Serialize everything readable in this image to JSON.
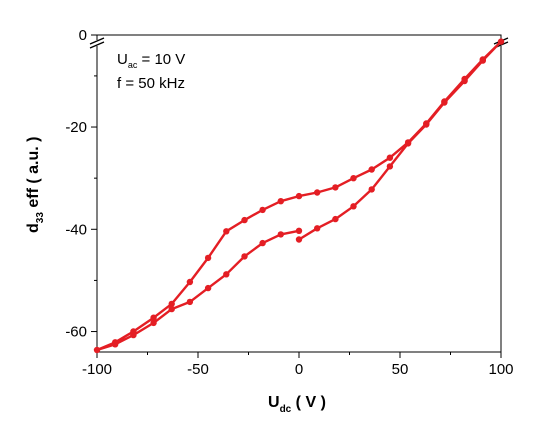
{
  "chart_data": {
    "type": "line",
    "xlabel": {
      "main": "U",
      "sub": "dc",
      "rest": " ( V )"
    },
    "ylabel": {
      "main": "d",
      "sub": "33",
      "rest": " eff ( a.u. )"
    },
    "xlim": [
      -100,
      100
    ],
    "ylim": [
      -64,
      -2
    ],
    "y_top_tick": 0,
    "axis_break": true,
    "grid": false,
    "x_ticks": [
      -100,
      -50,
      0,
      50,
      100
    ],
    "x_tick_labels": [
      "-100",
      "-50",
      "0",
      "50",
      "100"
    ],
    "y_ticks": [
      -60,
      -40,
      -20
    ],
    "y_tick_labels": [
      "-60",
      "-40",
      "-20"
    ],
    "y_top_tick_label": "0",
    "annotation": {
      "line1_main": "U",
      "line1_sub": "ac",
      "line1_rest": " = 10 V",
      "line2": "f = 50 kHz"
    },
    "series": [
      {
        "color": "#e41e24",
        "points": [
          [
            0,
            -42
          ],
          [
            9,
            -39.8
          ],
          [
            18,
            -38
          ],
          [
            27,
            -35.5
          ],
          [
            36,
            -32.2
          ],
          [
            45,
            -27.7
          ],
          [
            54,
            -23.2
          ],
          [
            63,
            -19.5
          ],
          [
            72,
            -15.2
          ],
          [
            82,
            -11
          ],
          [
            91,
            -7
          ],
          [
            100,
            -3.3
          ],
          [
            91,
            -6.8
          ],
          [
            82,
            -10.6
          ],
          [
            72,
            -15
          ],
          [
            63,
            -19.3
          ],
          [
            54,
            -23
          ],
          [
            45,
            -26
          ],
          [
            36,
            -28.3
          ],
          [
            27,
            -30
          ],
          [
            18,
            -31.8
          ],
          [
            9,
            -32.8
          ],
          [
            0,
            -33.5
          ],
          [
            -9,
            -34.5
          ],
          [
            -18,
            -36.2
          ],
          [
            -27,
            -38.2
          ],
          [
            -36,
            -40.4
          ],
          [
            -45,
            -45.6
          ],
          [
            -54,
            -50.3
          ],
          [
            -63,
            -54.6
          ],
          [
            -72,
            -57.3
          ],
          [
            -82,
            -60
          ],
          [
            -91,
            -62.1
          ],
          [
            -100,
            -63.6
          ],
          [
            -91,
            -62.5
          ],
          [
            -82,
            -60.7
          ],
          [
            -72,
            -58.3
          ],
          [
            -63,
            -55.6
          ],
          [
            -54,
            -54.2
          ],
          [
            -45,
            -51.5
          ],
          [
            -36,
            -48.8
          ],
          [
            -27,
            -45.3
          ],
          [
            -18,
            -42.7
          ],
          [
            -9,
            -41
          ],
          [
            0,
            -40.3
          ]
        ]
      }
    ]
  }
}
